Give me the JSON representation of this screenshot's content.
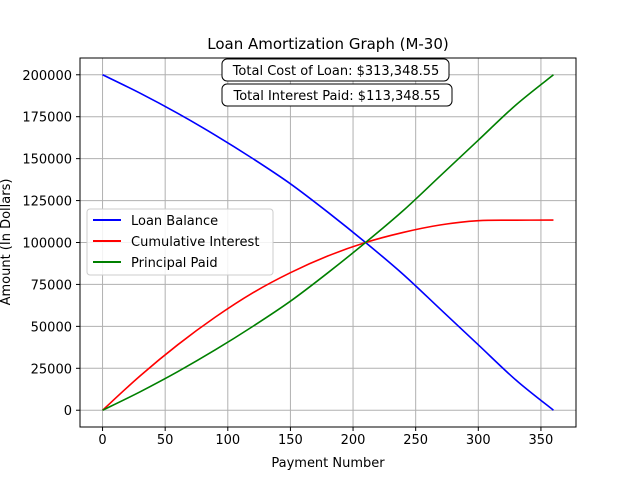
{
  "chart_data": {
    "type": "line",
    "title": "Loan Amortization Graph (M-30)",
    "xlabel": "Payment Number",
    "ylabel": "Amount (In Dollars)",
    "xlim": [
      -18,
      378
    ],
    "ylim": [
      -10000,
      210000
    ],
    "xticks": [
      0,
      50,
      100,
      150,
      200,
      250,
      300,
      350
    ],
    "yticks": [
      0,
      25000,
      50000,
      75000,
      100000,
      125000,
      150000,
      175000,
      200000
    ],
    "grid": true,
    "legend_position": "center-left",
    "annotations": [
      "Total Cost of Loan: $313,348.55",
      "Total Interest Paid: $113,348.55"
    ],
    "x": [
      0,
      30,
      60,
      90,
      120,
      150,
      180,
      210,
      240,
      270,
      300,
      330,
      360
    ],
    "series": [
      {
        "name": "Loan Balance",
        "color": "#0000ff",
        "values": [
          200000,
          189000,
          177000,
          164000,
          150000,
          135000,
          118000,
          100000,
          81000,
          60000,
          39000,
          18000,
          0
        ]
      },
      {
        "name": "Cumulative Interest",
        "color": "#ff0000",
        "values": [
          0,
          20500,
          39000,
          55500,
          70000,
          82000,
          92000,
          100000,
          106000,
          110500,
          113000,
          113300,
          113348.55
        ]
      },
      {
        "name": "Principal Paid",
        "color": "#008000",
        "values": [
          0,
          11000,
          23000,
          36000,
          50000,
          65000,
          82000,
          100000,
          119000,
          140000,
          161000,
          182000,
          200000
        ]
      }
    ]
  }
}
